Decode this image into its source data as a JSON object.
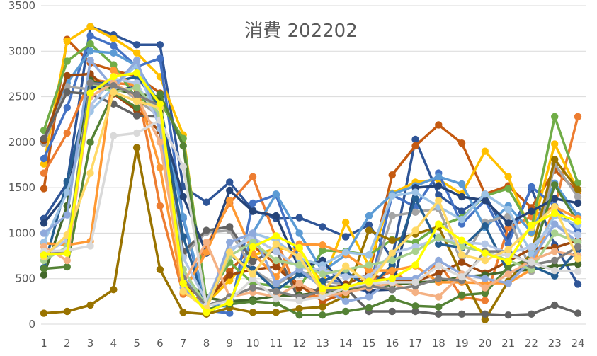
{
  "chart_data": {
    "type": "line",
    "title": "消費 202202",
    "xlabel": "",
    "ylabel": "",
    "ylim": [
      0,
      3500
    ],
    "ytick_step": 500,
    "grid": true,
    "legend": "none",
    "categories": [
      "1",
      "2",
      "3",
      "4",
      "5",
      "6",
      "7",
      "8",
      "9",
      "10",
      "11",
      "12",
      "13",
      "14",
      "15",
      "16",
      "17",
      "18",
      "19",
      "20",
      "21",
      "22",
      "23",
      "24"
    ],
    "series": [
      {
        "color": "#2f5597",
        "values": [
          1160,
          1550,
          3270,
          3180,
          3070,
          3070,
          1510,
          1340,
          1560,
          1250,
          1160,
          1170,
          1070,
          960,
          1090,
          720,
          2030,
          1420,
          1240,
          1420,
          960,
          1490,
          870,
          440
        ]
      },
      {
        "color": "#c55a11",
        "values": [
          1490,
          3130,
          2870,
          2790,
          2720,
          2540,
          340,
          240,
          580,
          860,
          660,
          430,
          250,
          340,
          540,
          1640,
          1960,
          2190,
          1990,
          1430,
          1520,
          1280,
          1690,
          1460
        ]
      },
      {
        "color": "#ed7d31",
        "values": [
          1660,
          2100,
          2690,
          2650,
          2630,
          1300,
          330,
          860,
          1330,
          1620,
          940,
          300,
          310,
          320,
          470,
          580,
          420,
          680,
          300,
          260,
          1060,
          1180,
          1290,
          2280
        ]
      },
      {
        "color": "#ffc000",
        "values": [
          1760,
          3110,
          3270,
          3140,
          2980,
          2720,
          2080,
          230,
          480,
          760,
          830,
          830,
          440,
          1120,
          640,
          1440,
          1560,
          1590,
          1430,
          1900,
          1620,
          1000,
          1980,
          1470
        ]
      },
      {
        "color": "#4472c4",
        "values": [
          1820,
          2380,
          3170,
          3060,
          2830,
          2920,
          1160,
          150,
          120,
          1330,
          1420,
          710,
          560,
          410,
          360,
          1420,
          1290,
          1660,
          1100,
          1360,
          880,
          1510,
          1300,
          1020
        ]
      },
      {
        "color": "#70ad47",
        "values": [
          2130,
          2890,
          3080,
          2850,
          2470,
          2440,
          2040,
          270,
          680,
          450,
          420,
          400,
          810,
          800,
          760,
          930,
          900,
          1080,
          1170,
          1410,
          1490,
          1050,
          2280,
          1550
        ]
      },
      {
        "color": "#5b9bd5",
        "values": [
          2030,
          2650,
          3000,
          2980,
          2840,
          2410,
          1180,
          220,
          190,
          1000,
          1430,
          1000,
          580,
          760,
          1190,
          1430,
          1520,
          1620,
          1540,
          1060,
          1300,
          1010,
          1550,
          1190
        ]
      },
      {
        "color": "#a5a5a5",
        "values": [
          1990,
          2610,
          2580,
          2660,
          2470,
          2280,
          750,
          1010,
          1030,
          600,
          430,
          590,
          470,
          440,
          380,
          1190,
          1230,
          1270,
          680,
          1120,
          1190,
          580,
          1760,
          1400
        ]
      },
      {
        "color": "#9e480e",
        "values": [
          2020,
          2730,
          2750,
          2530,
          2350,
          2120,
          440,
          250,
          540,
          600,
          630,
          400,
          360,
          440,
          550,
          470,
          470,
          560,
          680,
          560,
          690,
          830,
          840,
          920
        ]
      },
      {
        "color": "#997300",
        "values": [
          120,
          140,
          210,
          380,
          1940,
          600,
          130,
          110,
          180,
          130,
          130,
          170,
          190,
          310,
          1030,
          920,
          990,
          1070,
          540,
          50,
          470,
          780,
          1810,
          1480
        ]
      },
      {
        "color": "#636363",
        "values": [
          2040,
          2550,
          2530,
          2420,
          2290,
          2280,
          800,
          1030,
          1070,
          690,
          820,
          260,
          420,
          400,
          140,
          140,
          140,
          110,
          110,
          110,
          100,
          110,
          210,
          120
        ]
      },
      {
        "color": "#264478",
        "values": [
          1110,
          1430,
          2610,
          2560,
          2610,
          2260,
          1400,
          780,
          1470,
          1240,
          1190,
          610,
          700,
          400,
          370,
          380,
          1500,
          1520,
          1400,
          1360,
          1110,
          1240,
          1380,
          1330
        ]
      },
      {
        "color": "#43682b",
        "values": [
          540,
          1300,
          2680,
          2580,
          2530,
          2500,
          500,
          290,
          250,
          270,
          310,
          320,
          350,
          360,
          420,
          430,
          460,
          470,
          520,
          540,
          580,
          600,
          640,
          660
        ]
      },
      {
        "color": "#255e91",
        "values": [
          620,
          1570,
          2640,
          2660,
          2720,
          2390,
          960,
          180,
          760,
          600,
          370,
          550,
          470,
          580,
          400,
          650,
          1380,
          880,
          840,
          1080,
          570,
          640,
          530,
          820
        ]
      },
      {
        "color": "#548235",
        "values": [
          610,
          630,
          2000,
          2540,
          2380,
          2530,
          1960,
          160,
          220,
          250,
          230,
          100,
          100,
          140,
          180,
          280,
          200,
          190,
          320,
          340,
          630,
          720,
          1530,
          1120
        ]
      },
      {
        "color": "#ff9933",
        "values": [
          890,
          870,
          910,
          2790,
          2590,
          1720,
          350,
          790,
          1360,
          780,
          520,
          880,
          870,
          770,
          590,
          590,
          640,
          460,
          460,
          450,
          450,
          600,
          1290,
          1160
        ]
      },
      {
        "color": "#9dc3e6",
        "values": [
          900,
          1450,
          2340,
          2600,
          2850,
          2150,
          520,
          220,
          790,
          1000,
          920,
          720,
          650,
          790,
          760,
          1410,
          1450,
          1290,
          1150,
          1430,
          1260,
          770,
          1190,
          1090
        ]
      },
      {
        "color": "#b4c7e7",
        "values": [
          760,
          930,
          2400,
          2700,
          2650,
          2200,
          730,
          250,
          820,
          950,
          800,
          620,
          600,
          520,
          520,
          780,
          850,
          940,
          900,
          880,
          780,
          850,
          1100,
          980
        ]
      },
      {
        "color": "#8faadc",
        "values": [
          1000,
          1200,
          2900,
          2600,
          2900,
          2200,
          400,
          180,
          900,
          1000,
          450,
          600,
          400,
          250,
          300,
          500,
          500,
          700,
          550,
          500,
          450,
          700,
          1100,
          900
        ]
      },
      {
        "color": "#a9d18e",
        "values": [
          700,
          850,
          2650,
          2550,
          2600,
          2300,
          600,
          200,
          750,
          900,
          700,
          650,
          550,
          600,
          650,
          700,
          800,
          950,
          850,
          800,
          700,
          600,
          1000,
          900
        ]
      },
      {
        "color": "#f4b183",
        "values": [
          850,
          700,
          2500,
          2650,
          2500,
          2000,
          450,
          900,
          300,
          350,
          300,
          450,
          300,
          350,
          400,
          450,
          350,
          300,
          550,
          400,
          550,
          700,
          800,
          750
        ]
      },
      {
        "color": "#7f7f7f",
        "values": [
          760,
          800,
          2650,
          2620,
          2520,
          2400,
          500,
          200,
          300,
          400,
          360,
          300,
          360,
          400,
          420,
          380,
          420,
          500,
          480,
          800,
          800,
          650,
          700,
          850
        ]
      },
      {
        "color": "#d9d9d9",
        "values": [
          800,
          810,
          860,
          2070,
          2100,
          2240,
          1730,
          200,
          260,
          500,
          280,
          260,
          300,
          400,
          450,
          460,
          460,
          640,
          520,
          760,
          760,
          680,
          590,
          580
        ]
      },
      {
        "color": "#ffd966",
        "values": [
          740,
          980,
          1660,
          2550,
          2450,
          2380,
          360,
          170,
          790,
          550,
          880,
          740,
          360,
          640,
          450,
          780,
          1030,
          1360,
          760,
          700,
          820,
          1060,
          1290,
          720
        ]
      },
      {
        "color": "#ffff00",
        "values": [
          760,
          780,
          2540,
          2720,
          2760,
          2420,
          450,
          130,
          240,
          850,
          970,
          840,
          390,
          410,
          470,
          500,
          650,
          1100,
          920,
          780,
          690,
          1090,
          1220,
          1130
        ]
      }
    ]
  }
}
